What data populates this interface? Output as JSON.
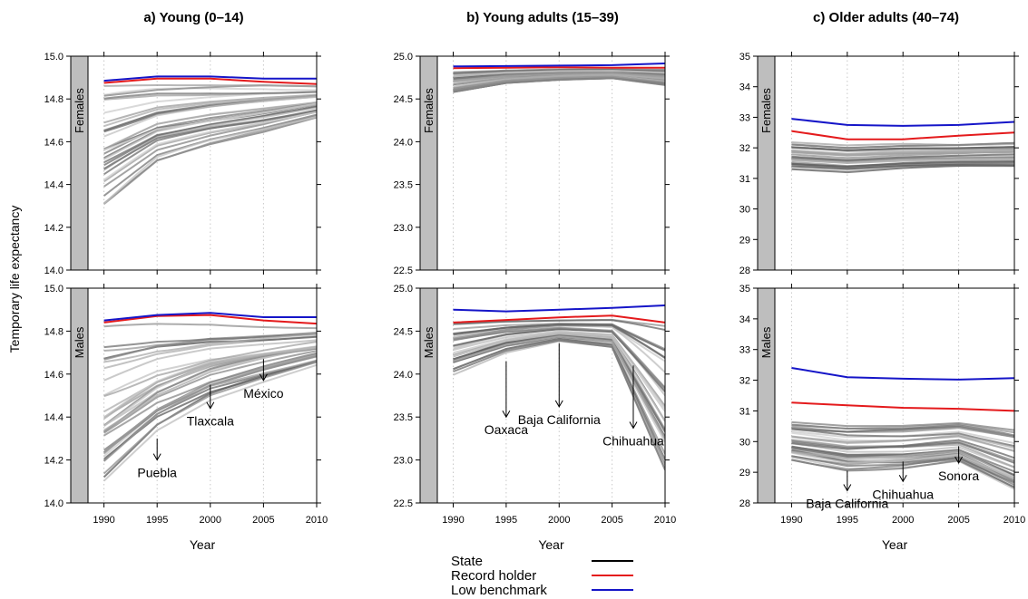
{
  "chart_data": {
    "type": "line",
    "ylabel": "Temporary life expectancy",
    "xlabel": "Year",
    "x_ticks": [
      1990,
      1995,
      2000,
      2005,
      2010
    ],
    "xlim": [
      1988.5,
      2010
    ],
    "sex_labels": [
      "Females",
      "Males"
    ],
    "legend": {
      "placement": "bottom-center",
      "entries": [
        {
          "label": "State",
          "color": "#000000"
        },
        {
          "label": "Record holder",
          "color": "#e41a1c"
        },
        {
          "label": "Low benchmark",
          "color": "#1515c8"
        }
      ]
    },
    "panels": [
      {
        "title": "a) Young (0–14)",
        "yticks": [
          "14.0",
          "14.2",
          "14.4",
          "14.6",
          "14.8",
          "15.0"
        ],
        "ylim": [
          14.0,
          15.0
        ],
        "rows": [
          {
            "sex": "Females",
            "low_benchmark": [
              [
                1990,
                14.885
              ],
              [
                1995,
                14.905
              ],
              [
                2000,
                14.905
              ],
              [
                2005,
                14.895
              ],
              [
                2010,
                14.895
              ]
            ],
            "record_holder": [
              [
                1990,
                14.875
              ],
              [
                1995,
                14.895
              ],
              [
                2000,
                14.895
              ],
              [
                2005,
                14.88
              ],
              [
                2010,
                14.87
              ]
            ],
            "state_band": [
              [
                14.29,
                14.88
              ],
              [
                14.5,
                14.88
              ],
              [
                14.58,
                14.88
              ],
              [
                14.64,
                14.88
              ],
              [
                14.71,
                14.87
              ]
            ],
            "annotations": []
          },
          {
            "sex": "Males",
            "low_benchmark": [
              [
                1990,
                14.85
              ],
              [
                1995,
                14.875
              ],
              [
                2000,
                14.885
              ],
              [
                2005,
                14.865
              ],
              [
                2010,
                14.865
              ]
            ],
            "record_holder": [
              [
                1990,
                14.84
              ],
              [
                1995,
                14.87
              ],
              [
                2000,
                14.875
              ],
              [
                2005,
                14.85
              ],
              [
                2010,
                14.835
              ]
            ],
            "state_band": [
              [
                14.07,
                14.84
              ],
              [
                14.32,
                14.85
              ],
              [
                14.47,
                14.85
              ],
              [
                14.56,
                14.84
              ],
              [
                14.64,
                14.83
              ]
            ],
            "annotations": [
              {
                "label": "Puebla",
                "x": 1995,
                "y_from": 14.3,
                "y_to": 14.2
              },
              {
                "label": "Tlaxcala",
                "x": 2000,
                "y_from": 14.55,
                "y_to": 14.44
              },
              {
                "label": "México",
                "x": 2005,
                "y_from": 14.67,
                "y_to": 14.57
              }
            ]
          }
        ]
      },
      {
        "title": "b) Young adults (15–39)",
        "yticks": [
          "22.5",
          "23.0",
          "23.5",
          "24.0",
          "24.5",
          "25.0"
        ],
        "ylim": [
          22.5,
          25.0
        ],
        "rows": [
          {
            "sex": "Females",
            "low_benchmark": [
              [
                1990,
                24.88
              ],
              [
                1995,
                24.885
              ],
              [
                2000,
                24.89
              ],
              [
                2005,
                24.895
              ],
              [
                2010,
                24.915
              ]
            ],
            "record_holder": [
              [
                1990,
                24.86
              ],
              [
                1995,
                24.865
              ],
              [
                2000,
                24.87
              ],
              [
                2005,
                24.865
              ],
              [
                2010,
                24.865
              ]
            ],
            "state_band": [
              [
                24.57,
                24.84
              ],
              [
                24.68,
                24.85
              ],
              [
                24.72,
                24.86
              ],
              [
                24.74,
                24.86
              ],
              [
                24.66,
                24.86
              ]
            ],
            "annotations": []
          },
          {
            "sex": "Males",
            "low_benchmark": [
              [
                1990,
                24.75
              ],
              [
                1995,
                24.73
              ],
              [
                2000,
                24.75
              ],
              [
                2005,
                24.77
              ],
              [
                2010,
                24.8
              ]
            ],
            "record_holder": [
              [
                1990,
                24.6
              ],
              [
                1995,
                24.63
              ],
              [
                2000,
                24.66
              ],
              [
                2005,
                24.68
              ],
              [
                2010,
                24.6
              ]
            ],
            "state_band": [
              [
                23.99,
                24.6
              ],
              [
                24.25,
                24.62
              ],
              [
                24.38,
                24.63
              ],
              [
                24.3,
                24.64
              ],
              [
                22.8,
                24.6
              ]
            ],
            "annotations": [
              {
                "label": "Oaxaca",
                "x": 1995,
                "y_from": 24.15,
                "y_to": 23.5
              },
              {
                "label": "Baja California",
                "x": 2000,
                "y_from": 24.36,
                "y_to": 23.62
              },
              {
                "label": "Chihuahua",
                "x": 2007,
                "y_from": 24.1,
                "y_to": 23.37
              }
            ]
          }
        ]
      },
      {
        "title": "c) Older adults (40–74)",
        "yticks": [
          "28",
          "29",
          "30",
          "31",
          "32",
          "33",
          "34",
          "35"
        ],
        "ylim": [
          28,
          35
        ],
        "rows": [
          {
            "sex": "Females",
            "low_benchmark": [
              [
                1990,
                32.95
              ],
              [
                1995,
                32.75
              ],
              [
                2000,
                32.72
              ],
              [
                2005,
                32.75
              ],
              [
                2010,
                32.85
              ]
            ],
            "record_holder": [
              [
                1990,
                32.55
              ],
              [
                1995,
                32.28
              ],
              [
                2000,
                32.28
              ],
              [
                2005,
                32.4
              ],
              [
                2010,
                32.5
              ]
            ],
            "state_band": [
              [
                31.3,
                32.2
              ],
              [
                31.2,
                32.1
              ],
              [
                31.3,
                32.15
              ],
              [
                31.35,
                32.15
              ],
              [
                31.35,
                32.2
              ]
            ],
            "annotations": []
          },
          {
            "sex": "Males",
            "low_benchmark": [
              [
                1990,
                32.4
              ],
              [
                1995,
                32.1
              ],
              [
                2000,
                32.05
              ],
              [
                2005,
                32.02
              ],
              [
                2010,
                32.07
              ]
            ],
            "record_holder": [
              [
                1990,
                31.27
              ],
              [
                1995,
                31.18
              ],
              [
                2000,
                31.1
              ],
              [
                2005,
                31.07
              ],
              [
                2010,
                31.0
              ]
            ],
            "state_band": [
              [
                29.4,
                30.95
              ],
              [
                29.05,
                30.9
              ],
              [
                29.1,
                30.9
              ],
              [
                29.3,
                30.95
              ],
              [
                28.3,
                30.9
              ]
            ],
            "annotations": [
              {
                "label": "Baja California",
                "x": 1995,
                "y_from": 29.05,
                "y_to": 28.4
              },
              {
                "label": "Chihuahua",
                "x": 2000,
                "y_from": 29.35,
                "y_to": 28.7
              },
              {
                "label": "Sonora",
                "x": 2005,
                "y_from": 29.85,
                "y_to": 29.3
              }
            ]
          }
        ]
      }
    ]
  }
}
